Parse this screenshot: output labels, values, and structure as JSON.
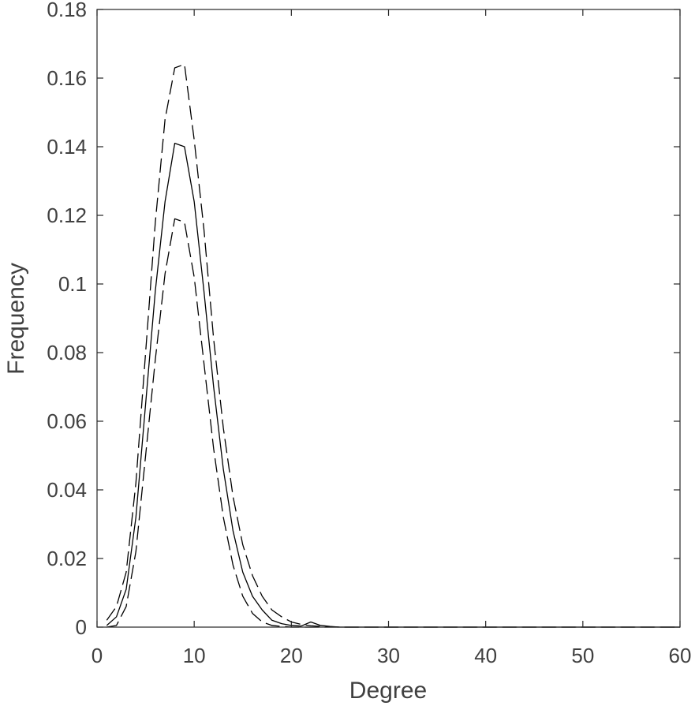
{
  "chart_data": {
    "type": "line",
    "title": "",
    "xlabel": "Degree",
    "ylabel": "Frequency",
    "xlim": [
      0,
      60
    ],
    "ylim": [
      0,
      0.18
    ],
    "x_ticks": [
      0,
      10,
      20,
      30,
      40,
      50,
      60
    ],
    "y_ticks": [
      0,
      0.02,
      0.04,
      0.06,
      0.08,
      0.1,
      0.12,
      0.14,
      0.16,
      0.18
    ],
    "x_tick_labels": [
      "0",
      "10",
      "20",
      "30",
      "40",
      "50",
      "60"
    ],
    "y_tick_labels": [
      "0",
      "0.02",
      "0.04",
      "0.06",
      "0.08",
      "0.1",
      "0.12",
      "0.14",
      "0.16",
      "0.18"
    ],
    "grid": false,
    "box": true,
    "series": [
      {
        "style": "solid",
        "color": "#000000",
        "x": [
          1,
          2,
          3,
          4,
          5,
          6,
          7,
          8,
          9,
          10,
          11,
          12,
          13,
          14,
          15,
          16,
          17,
          18,
          19,
          20,
          21,
          22,
          23,
          24,
          25,
          30,
          40,
          50,
          60
        ],
        "y": [
          0.0005,
          0.003,
          0.011,
          0.032,
          0.065,
          0.098,
          0.124,
          0.141,
          0.14,
          0.124,
          0.098,
          0.07,
          0.046,
          0.028,
          0.016,
          0.009,
          0.005,
          0.002,
          0.001,
          0.0005,
          0.0003,
          0.0015,
          0.0005,
          0.0002,
          0,
          0,
          0,
          0,
          0
        ]
      },
      {
        "style": "dashed",
        "color": "#000000",
        "x": [
          1,
          2,
          3,
          4,
          5,
          6,
          7,
          8,
          9,
          10,
          11,
          12,
          13,
          14,
          15,
          16,
          17,
          18,
          19,
          20,
          21,
          22,
          23,
          24,
          25,
          30,
          40,
          50,
          60
        ],
        "y": [
          0.002,
          0.006,
          0.016,
          0.042,
          0.08,
          0.118,
          0.148,
          0.163,
          0.164,
          0.142,
          0.116,
          0.084,
          0.058,
          0.038,
          0.024,
          0.015,
          0.009,
          0.005,
          0.003,
          0.0015,
          0.0008,
          0.0004,
          0.0002,
          0.0001,
          0,
          0,
          0,
          0,
          0
        ]
      },
      {
        "style": "dashed",
        "color": "#000000",
        "x": [
          1,
          2,
          3,
          4,
          5,
          6,
          7,
          8,
          9,
          10,
          11,
          12,
          13,
          14,
          15,
          16,
          17,
          18,
          19,
          20,
          21,
          22,
          23,
          24,
          25,
          30,
          40,
          50,
          60
        ],
        "y": [
          0,
          0.0005,
          0.006,
          0.022,
          0.05,
          0.078,
          0.103,
          0.119,
          0.118,
          0.102,
          0.077,
          0.052,
          0.032,
          0.018,
          0.009,
          0.004,
          0.0015,
          0.0005,
          0.0002,
          0,
          0,
          0,
          0,
          0,
          0,
          0,
          0,
          0,
          0
        ]
      }
    ]
  }
}
